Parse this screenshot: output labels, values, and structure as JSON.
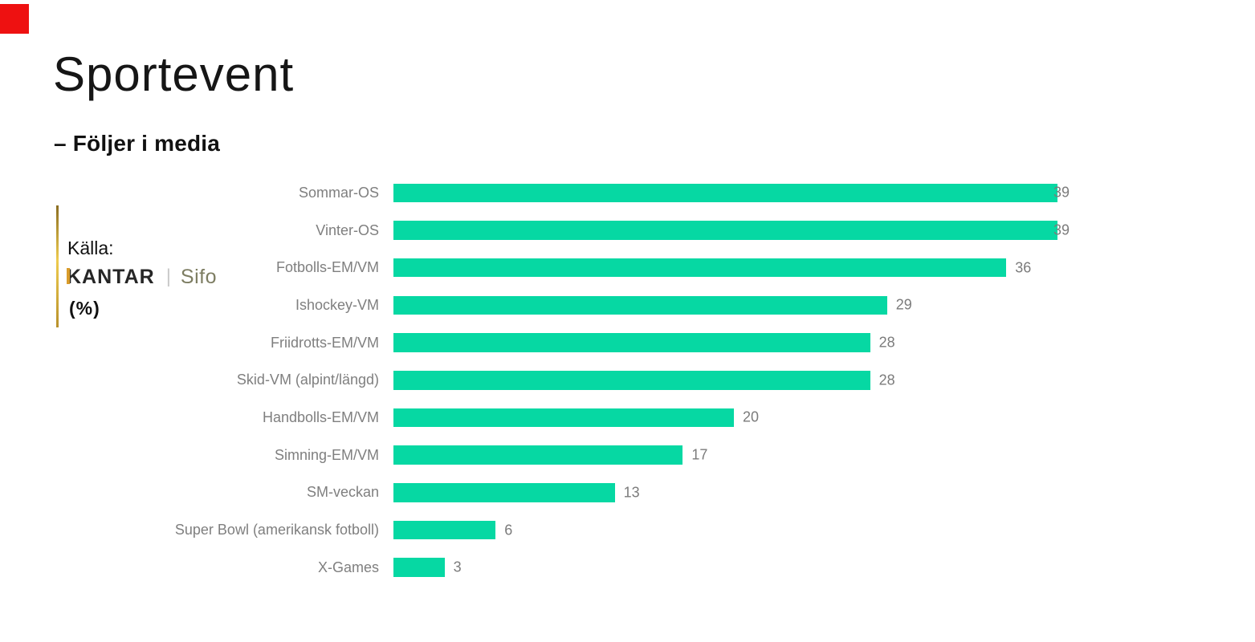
{
  "marker": {
    "color": "#ee1111"
  },
  "header": {
    "title": "Sportevent",
    "subtitle": "– Följer i media"
  },
  "source": {
    "label": "Källa:",
    "brand": "KANTAR",
    "separator": "|",
    "brand2": "Sifo",
    "unit": "(%)",
    "gold_accent": "#d99c2b",
    "sifo_color": "#7d7d62"
  },
  "chart_data": {
    "type": "bar",
    "orientation": "horizontal",
    "title": "Sportevent – Följer i media",
    "unit": "%",
    "categories": [
      "Sommar-OS",
      "Vinter-OS",
      "Fotbolls-EM/VM",
      "Ishockey-VM",
      "Friidrotts-EM/VM",
      "Skid-VM (alpint/längd)",
      "Handbolls-EM/VM",
      "Simning-EM/VM",
      "SM-veckan",
      "Super Bowl (amerikansk fotboll)",
      "X-Games"
    ],
    "values": [
      39,
      39,
      36,
      29,
      28,
      28,
      20,
      17,
      13,
      6,
      3
    ],
    "xlim": [
      0,
      40
    ],
    "grid": false,
    "legend": false,
    "value_labels": true,
    "bar_color": "#06d8a3",
    "category_label_color": "#7f7f7f",
    "value_label_color": "#7b7b7b"
  }
}
